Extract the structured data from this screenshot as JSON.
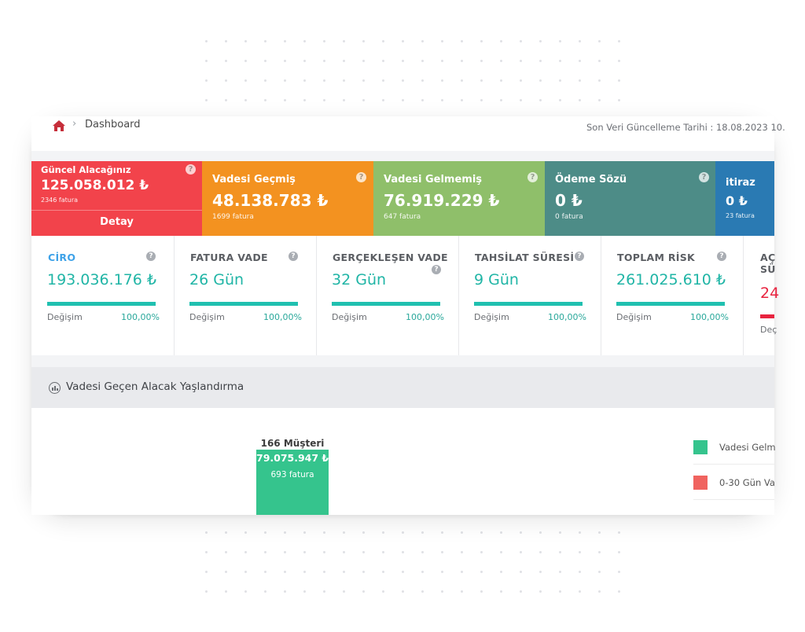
{
  "header": {
    "breadcrumb": "Dashboard",
    "last_update": "Son Veri Güncelleme Tarihi : 18.08.2023 10."
  },
  "kpis": [
    {
      "title": "Güncel Alacağınız",
      "amount": "125.058.012 ₺",
      "invoices": "2346 fatura",
      "action": "Detay",
      "color": "#f2434b"
    },
    {
      "title": "Vadesi Geçmiş",
      "amount": "48.138.783 ₺",
      "invoices": "1699 fatura",
      "color": "#f39220"
    },
    {
      "title": "Vadesi Gelmemiş",
      "amount": "76.919.229 ₺",
      "invoices": "647 fatura",
      "color": "#8fbf6a"
    },
    {
      "title": "Ödeme Sözü",
      "amount": "0 ₺",
      "invoices": "0 fatura",
      "color": "#4d8c87"
    },
    {
      "title": "itiraz",
      "amount": "0 ₺",
      "invoices": "23 fatura",
      "color": "#2a7ab3"
    }
  ],
  "stats": [
    {
      "label": "CİRO",
      "value": "193.036.176 ₺",
      "change_label": "Değişim",
      "change": "100,00%",
      "progress": 1.0
    },
    {
      "label": "FATURA VADE",
      "value": "26 Gün",
      "change_label": "Değişim",
      "change": "100,00%",
      "progress": 1.0
    },
    {
      "label": "GERÇEKLEŞEN VADE",
      "value": "32 Gün",
      "change_label": "Değişim",
      "change": "100,00%",
      "progress": 1.0
    },
    {
      "label": "TAHSİLAT SÜRESİ",
      "value": "9 Gün",
      "change_label": "Değişim",
      "change": "100,00%",
      "progress": 1.0
    },
    {
      "label": "TOPLAM RİSK",
      "value": "261.025.610 ₺",
      "change_label": "Değişim",
      "change": "100,00%",
      "progress": 1.0
    },
    {
      "label": "AÇ",
      "label2": "SÜ",
      "value": "24",
      "change_label": "Deç"
    }
  ],
  "section": {
    "title": "Vadesi Geçen Alacak Yaşlandırma"
  },
  "chart_data": {
    "type": "bar",
    "categories": [
      "Vadesi Gelm"
    ],
    "bars": [
      {
        "customers": "166 Müşteri",
        "value_label": "79.075.947 ₺",
        "invoices": "693 fatura"
      }
    ],
    "legend": [
      {
        "label": "Vadesi Gelm",
        "color": "#35c48d"
      },
      {
        "label": "0-30 Gün Va",
        "color": "#f0635f"
      }
    ]
  }
}
